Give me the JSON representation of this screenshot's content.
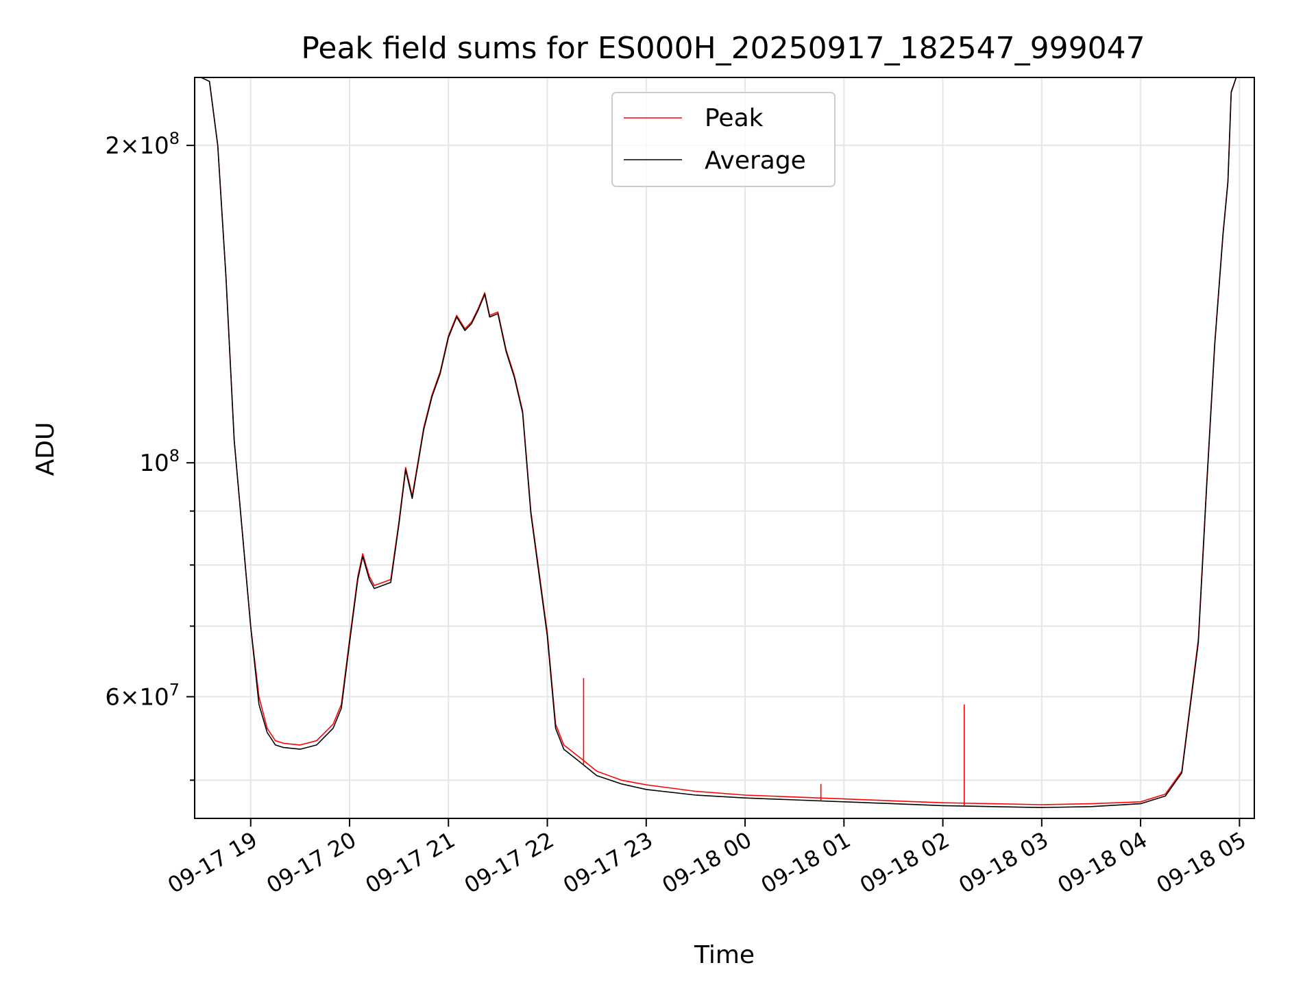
{
  "chart_data": {
    "type": "line",
    "title": "Peak field sums for ES000H_20250917_182547_999047",
    "xlabel": "Time",
    "ylabel": "ADU",
    "y_scale": "log",
    "x_range": [
      "09-17 18:26",
      "09-18 05:09"
    ],
    "ylim": [
      46000000,
      232000000
    ],
    "grid": true,
    "legend_position": "upper center",
    "x_ticks": [
      "09-17 19",
      "09-17 20",
      "09-17 21",
      "09-17 22",
      "09-17 23",
      "09-18 00",
      "09-18 01",
      "09-18 02",
      "09-18 03",
      "09-18 04",
      "09-18 05"
    ],
    "y_ticks_major": [
      {
        "value": 200000000,
        "mantissa": "2",
        "exponent": "8"
      },
      {
        "value": 100000000,
        "mantissa": "",
        "exponent": "8"
      },
      {
        "value": 60000000,
        "mantissa": "6",
        "exponent": "7"
      }
    ],
    "y_ticks_minor": [
      50000000,
      70000000,
      80000000,
      90000000
    ],
    "times": [
      "09-17 18:26",
      "09-17 18:30",
      "09-17 18:35",
      "09-17 18:40",
      "09-17 18:45",
      "09-17 18:50",
      "09-17 19:00",
      "09-17 19:05",
      "09-17 19:10",
      "09-17 19:15",
      "09-17 19:20",
      "09-17 19:30",
      "09-17 19:40",
      "09-17 19:50",
      "09-17 19:55",
      "09-17 20:00",
      "09-17 20:05",
      "09-17 20:08",
      "09-17 20:12",
      "09-17 20:15",
      "09-17 20:25",
      "09-17 20:30",
      "09-17 20:34",
      "09-17 20:38",
      "09-17 20:45",
      "09-17 20:50",
      "09-17 20:55",
      "09-17 21:00",
      "09-17 21:05",
      "09-17 21:10",
      "09-17 21:14",
      "09-17 21:18",
      "09-17 21:22",
      "09-17 21:25",
      "09-17 21:30",
      "09-17 21:35",
      "09-17 21:40",
      "09-17 21:45",
      "09-17 21:50",
      "09-17 22:00",
      "09-17 22:05",
      "09-17 22:10",
      "09-17 22:20",
      "09-17 22:30",
      "09-17 22:45",
      "09-17 23:00",
      "09-17 23:30",
      "09-18 00:00",
      "09-18 00:30",
      "09-18 01:00",
      "09-18 01:30",
      "09-18 02:00",
      "09-18 02:30",
      "09-18 03:00",
      "09-18 03:30",
      "09-18 04:00",
      "09-18 04:15",
      "09-18 04:25",
      "09-18 04:35",
      "09-18 04:40",
      "09-18 04:45",
      "09-18 04:50",
      "09-18 04:53",
      "09-18 04:55",
      "09-18 04:58",
      "09-18 05:00",
      "09-18 05:09"
    ],
    "series": [
      {
        "name": "Peak",
        "color": "#ff0000",
        "values": [
          232000000,
          232000000,
          230000000,
          200000000,
          150000000,
          105000000,
          70000000,
          60000000,
          56000000,
          54500000,
          54200000,
          54000000,
          54500000,
          56500000,
          59000000,
          68000000,
          78000000,
          82000000,
          78000000,
          76500000,
          77500000,
          88000000,
          99000000,
          93000000,
          108000000,
          116000000,
          122000000,
          132000000,
          138000000,
          134000000,
          136000000,
          140000000,
          145000000,
          138000000,
          139000000,
          128000000,
          121000000,
          112000000,
          90000000,
          69000000,
          56500000,
          54000000,
          52500000,
          51000000,
          50000000,
          49500000,
          48800000,
          48400000,
          48200000,
          48000000,
          47800000,
          47600000,
          47500000,
          47400000,
          47500000,
          47700000,
          48500000,
          51000000,
          68000000,
          95000000,
          130000000,
          165000000,
          185000000,
          225000000,
          232000000,
          232000000,
          232000000
        ]
      },
      {
        "name": "Average",
        "color": "#000000",
        "values": [
          232000000,
          232000000,
          230000000,
          200000000,
          150000000,
          105000000,
          70000000,
          59000000,
          55500000,
          54000000,
          53700000,
          53500000,
          54000000,
          56000000,
          58500000,
          67500000,
          77500000,
          81500000,
          77500000,
          76000000,
          77000000,
          87500000,
          98500000,
          92500000,
          107500000,
          115500000,
          121500000,
          131500000,
          137500000,
          133500000,
          135500000,
          139500000,
          144500000,
          137500000,
          138500000,
          127500000,
          120500000,
          111500000,
          89500000,
          68500000,
          56000000,
          53500000,
          52000000,
          50500000,
          49600000,
          49000000,
          48400000,
          48100000,
          47900000,
          47700000,
          47500000,
          47300000,
          47200000,
          47100000,
          47200000,
          47500000,
          48300000,
          50800000,
          67500000,
          94500000,
          129500000,
          164500000,
          184500000,
          224500000,
          232000000,
          232000000,
          232000000
        ]
      }
    ],
    "spikes": [
      {
        "series": "Peak",
        "time": "09-17 22:22",
        "value": 62500000
      },
      {
        "series": "Peak",
        "time": "09-18 00:46",
        "value": 49600000
      },
      {
        "series": "Peak",
        "time": "09-18 02:13",
        "value": 59000000
      },
      {
        "series": "Peak",
        "time": "09-18 04:23",
        "value": 50200000
      }
    ]
  }
}
